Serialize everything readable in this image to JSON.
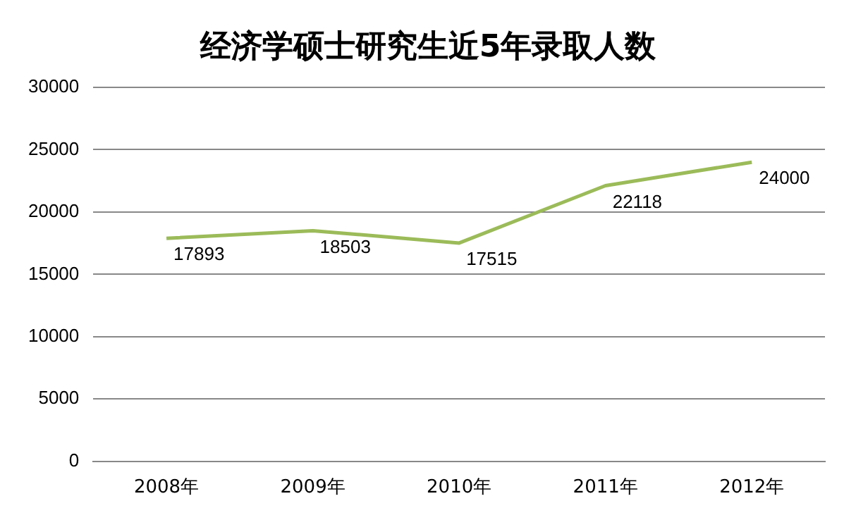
{
  "chart_data": {
    "type": "line",
    "title": "经济学硕士研究生近5年录取人数",
    "categories": [
      "2008年",
      "2009年",
      "2010年",
      "2011年",
      "2012年"
    ],
    "series": [
      {
        "color": "#9bbb59",
        "values": [
          17893,
          18503,
          17515,
          22118,
          24000
        ]
      }
    ],
    "ylim": [
      0,
      30000
    ],
    "yticks": [
      0,
      5000,
      10000,
      15000,
      20000,
      25000,
      30000
    ],
    "grid": "y",
    "legend": false,
    "marker": "none",
    "line_style": "solid",
    "data_labels": true
  }
}
